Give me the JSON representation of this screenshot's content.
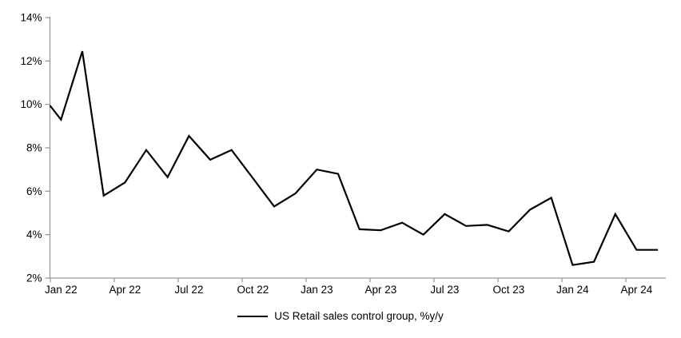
{
  "chart_data": {
    "type": "line",
    "title": "",
    "legend": {
      "position": "bottom-center",
      "entries": [
        "US Retail sales control group, %y/y"
      ]
    },
    "categories": [
      "Jan 22",
      "Feb 22",
      "Mar 22",
      "Apr 22",
      "May 22",
      "Jun 22",
      "Jul 22",
      "Aug 22",
      "Sep 22",
      "Oct 22",
      "Nov 22",
      "Dec 22",
      "Jan 23",
      "Feb 23",
      "Mar 23",
      "Apr 23",
      "May 23",
      "Jun 23",
      "Jul 23",
      "Aug 23",
      "Sep 23",
      "Oct 23",
      "Nov 23",
      "Dec 23",
      "Jan 24",
      "Feb 24",
      "Mar 24",
      "Apr 24",
      "May 24"
    ],
    "series": [
      {
        "name": "US Retail sales control group, %y/y",
        "color": "#000000",
        "values": [
          9.3,
          12.45,
          5.8,
          6.4,
          7.9,
          6.65,
          8.55,
          7.45,
          7.9,
          6.6,
          5.3,
          5.9,
          7.0,
          6.8,
          4.25,
          4.2,
          4.55,
          4.0,
          4.95,
          4.4,
          4.45,
          4.15,
          5.15,
          5.7,
          2.6,
          2.75,
          4.95,
          3.3,
          3.3
        ],
        "leading_edge_value_at_axis": 9.95
      }
    ],
    "x_axis": {
      "tick_labels": [
        "Jan 22",
        "Apr 22",
        "Jul 22",
        "Oct 22",
        "Jan 23",
        "Apr 23",
        "Jul 23",
        "Oct 23",
        "Jan 24",
        "Apr 24"
      ],
      "tick_every_n_categories": 3,
      "labels_between_ticks": true
    },
    "y_axis": {
      "min": 2,
      "max": 14,
      "step": 2,
      "tick_labels": [
        "2%",
        "4%",
        "6%",
        "8%",
        "10%",
        "12%",
        "14%"
      ],
      "unit": "%"
    },
    "grid": false,
    "colors": {
      "line": "#000000",
      "axis": "#969696",
      "text": "#000000",
      "background": "#ffffff"
    }
  }
}
